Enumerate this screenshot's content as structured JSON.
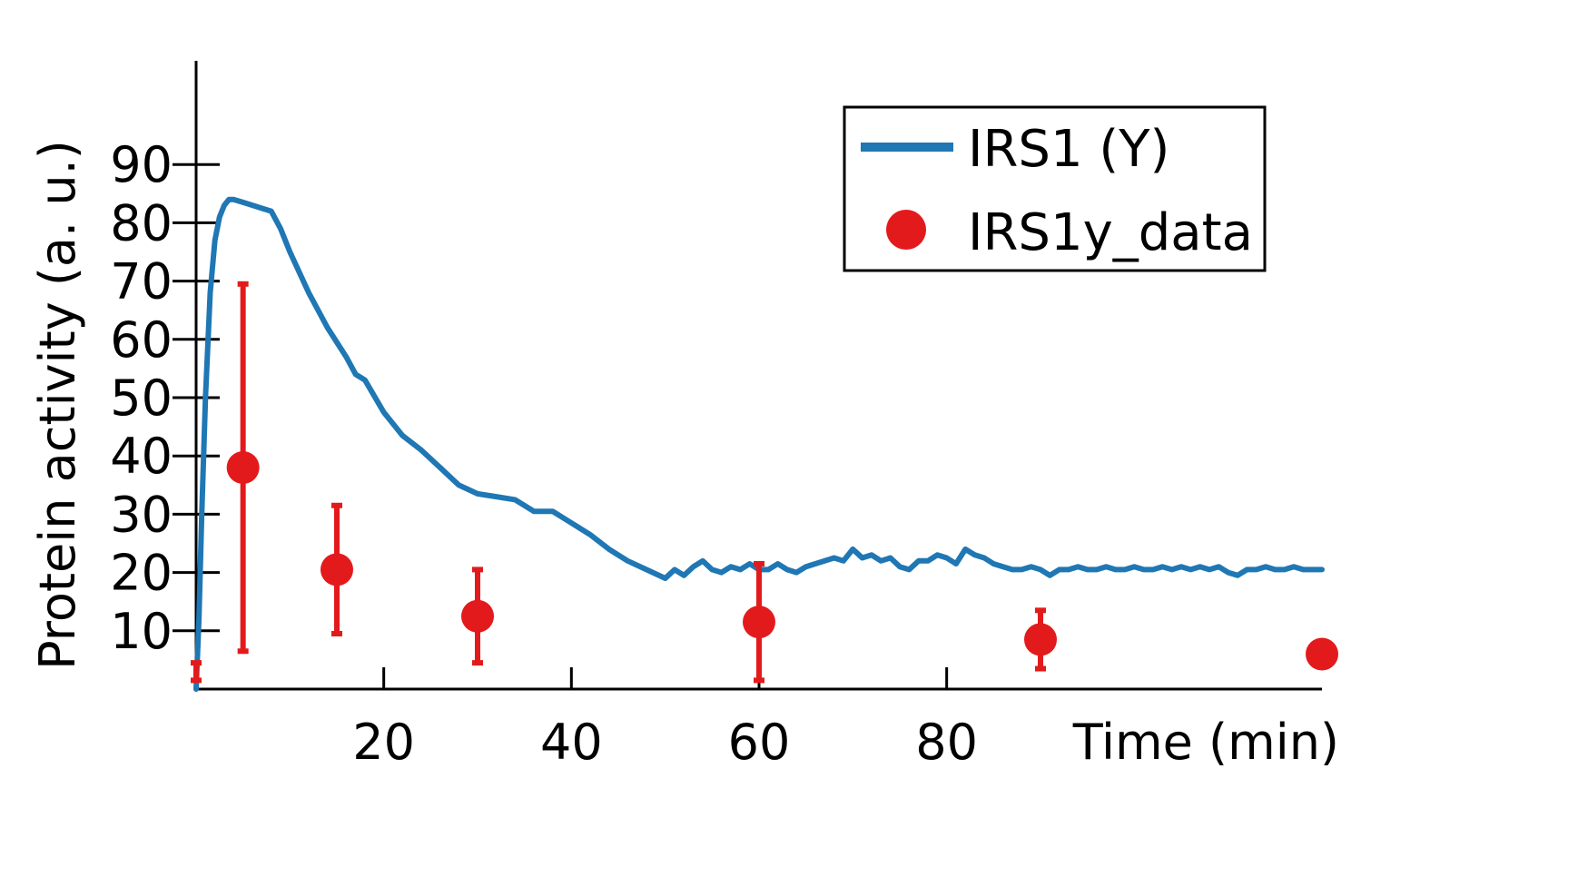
{
  "chart_data": {
    "type": "line",
    "xlabel": "Time (min)",
    "ylabel": "Protein activity (a. u.)",
    "xlim": [
      0,
      120
    ],
    "ylim": [
      0,
      100
    ],
    "xticks": [
      20,
      40,
      60,
      80
    ],
    "yticks": [
      10,
      20,
      30,
      40,
      50,
      60,
      70,
      80,
      90
    ],
    "grid": false,
    "legend_position": "top-right",
    "series": [
      {
        "name": "IRS1 (Y)",
        "kind": "line",
        "color": "#1f77b4",
        "x": [
          0,
          0.3,
          0.6,
          1,
          1.5,
          2,
          2.5,
          3,
          3.5,
          4,
          5,
          6,
          7,
          8,
          9,
          10,
          12,
          14,
          16,
          17,
          18,
          20,
          22,
          24,
          26,
          28,
          30,
          32,
          34,
          36,
          38,
          40,
          42,
          44,
          46,
          48,
          50,
          51,
          52,
          53,
          54,
          55,
          56,
          57,
          58,
          59,
          60,
          61,
          62,
          63,
          64,
          65,
          66,
          67,
          68,
          69,
          70,
          71,
          72,
          73,
          74,
          75,
          76,
          77,
          78,
          79,
          80,
          81,
          82,
          83,
          84,
          85,
          86,
          87,
          88,
          89,
          90,
          91,
          92,
          93,
          94,
          95,
          96,
          97,
          98,
          99,
          100,
          101,
          102,
          103,
          104,
          105,
          106,
          107,
          108,
          109,
          110,
          111,
          112,
          113,
          114,
          115,
          116,
          117,
          118,
          119,
          120
        ],
        "y": [
          0,
          12,
          30,
          50,
          68,
          77,
          81,
          83,
          84,
          84,
          83.5,
          83,
          82.5,
          82,
          79,
          75,
          68,
          62,
          57,
          54,
          53,
          47.5,
          43.5,
          41,
          38,
          35,
          33.5,
          33,
          32.5,
          30.5,
          30.5,
          28.5,
          26.5,
          24,
          22,
          20.5,
          19,
          20.5,
          19.5,
          21,
          22,
          20.5,
          20,
          21,
          20.5,
          21.5,
          20.5,
          20.5,
          21.5,
          20.5,
          20,
          21,
          21.5,
          22,
          22.5,
          22,
          24,
          22.5,
          23,
          22,
          22.5,
          21,
          20.5,
          22,
          22,
          23,
          22.5,
          21.5,
          24,
          23,
          22.5,
          21.5,
          21,
          20.5,
          20.5,
          21,
          20.5,
          19.5,
          20.5,
          20.5,
          21,
          20.5,
          20.5,
          21,
          20.5,
          20.5,
          21,
          20.5,
          20.5,
          21,
          20.5,
          21,
          20.5,
          21,
          20.5,
          21,
          20,
          19.5,
          20.5,
          20.5,
          21,
          20.5,
          20.5,
          21,
          20.5,
          20.5,
          20.5
        ]
      },
      {
        "name": "IRS1y_data",
        "kind": "errorbar",
        "color": "#e31a1c",
        "x": [
          0,
          5,
          15,
          30,
          60,
          90,
          120
        ],
        "y": [
          3,
          38,
          20.5,
          12.5,
          11.5,
          8.5,
          6
        ],
        "err": [
          1.5,
          31.5,
          11,
          8,
          10,
          5,
          0
        ]
      }
    ]
  }
}
